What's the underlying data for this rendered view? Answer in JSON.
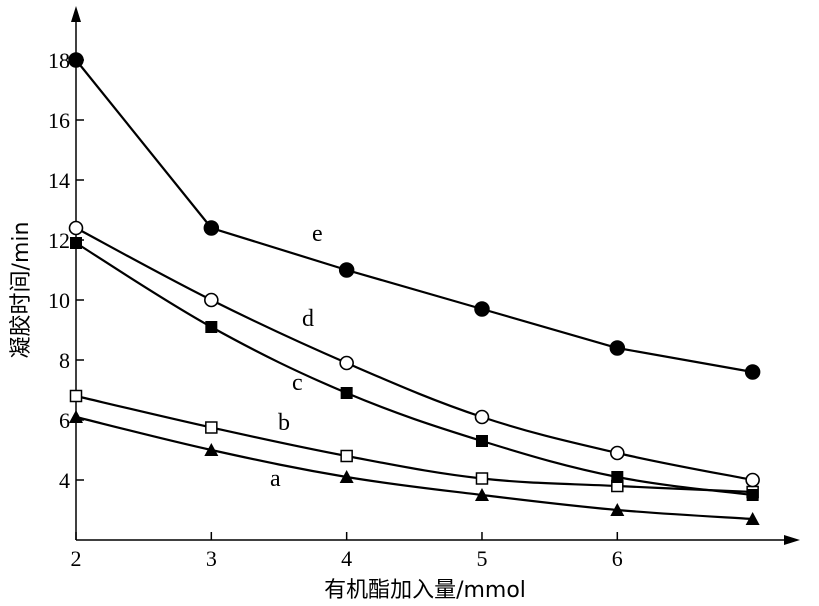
{
  "chart_data": {
    "type": "line",
    "xlabel": "有机酯加入量/mmol",
    "ylabel": "凝胶时间/min",
    "x_ticks": [
      "2",
      "3",
      "4",
      "5",
      "6"
    ],
    "y_ticks": [
      "4",
      "6",
      "8",
      "10",
      "12",
      "14",
      "16",
      "18"
    ],
    "xlim": [
      2,
      7.35
    ],
    "ylim": [
      2,
      19.8
    ],
    "grid": false,
    "series": [
      {
        "name": "a",
        "marker": "filled-triangle",
        "x": [
          2,
          3,
          4,
          5,
          6,
          7
        ],
        "y": [
          6.1,
          5.0,
          4.1,
          3.5,
          3.0,
          2.7
        ]
      },
      {
        "name": "b",
        "marker": "open-square",
        "x": [
          2,
          3,
          4,
          5,
          6,
          7
        ],
        "y": [
          6.8,
          5.75,
          4.8,
          4.05,
          3.8,
          3.6
        ]
      },
      {
        "name": "c",
        "marker": "filled-square",
        "x": [
          2,
          3,
          4,
          5,
          6,
          7
        ],
        "y": [
          11.9,
          9.1,
          6.9,
          5.3,
          4.1,
          3.5
        ]
      },
      {
        "name": "d",
        "marker": "open-circle",
        "x": [
          2,
          3,
          4,
          5,
          6,
          7
        ],
        "y": [
          12.4,
          10.0,
          7.9,
          6.1,
          4.9,
          4.0
        ]
      },
      {
        "name": "e",
        "marker": "filled-circle",
        "x": [
          2,
          3,
          4,
          5,
          6,
          7
        ],
        "y": [
          18.0,
          12.4,
          11.0,
          9.7,
          8.4,
          7.6
        ]
      }
    ]
  }
}
